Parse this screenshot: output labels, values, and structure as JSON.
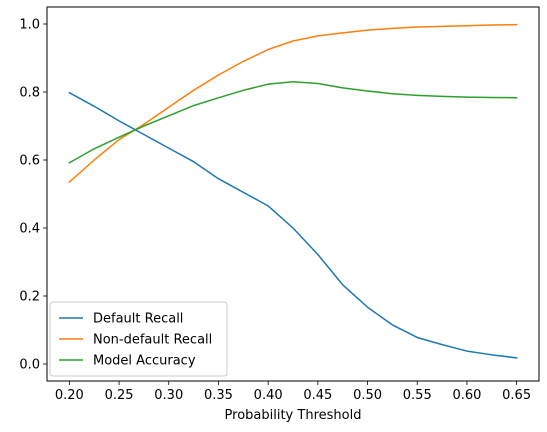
{
  "chart_data": {
    "type": "line",
    "title": "",
    "xlabel": "Probability Threshold",
    "ylabel": "",
    "xlim": [
      0.1775,
      0.6725
    ],
    "ylim": [
      -0.05,
      1.05
    ],
    "xticks": [
      0.2,
      0.25,
      0.3,
      0.35,
      0.4,
      0.45,
      0.5,
      0.55,
      0.6,
      0.65
    ],
    "xtick_labels": [
      "0.20",
      "0.25",
      "0.30",
      "0.35",
      "0.40",
      "0.45",
      "0.50",
      "0.55",
      "0.60",
      "0.65"
    ],
    "yticks": [
      0.0,
      0.2,
      0.4,
      0.6,
      0.8,
      1.0
    ],
    "ytick_labels": [
      "0.0",
      "0.2",
      "0.4",
      "0.6",
      "0.8",
      "1.0"
    ],
    "grid": false,
    "legend_position": "lower-left",
    "x": [
      0.2,
      0.225,
      0.25,
      0.275,
      0.3,
      0.325,
      0.35,
      0.375,
      0.4,
      0.425,
      0.45,
      0.475,
      0.5,
      0.525,
      0.55,
      0.575,
      0.6,
      0.625,
      0.65
    ],
    "series": [
      {
        "name": "Default Recall",
        "color": "#1f77b4",
        "values": [
          0.798,
          0.758,
          0.715,
          0.675,
          0.635,
          0.595,
          0.545,
          0.505,
          0.465,
          0.4,
          0.322,
          0.233,
          0.167,
          0.115,
          0.078,
          0.057,
          0.038,
          0.027,
          0.018
        ]
      },
      {
        "name": "Non-default Recall",
        "color": "#ff7f0e",
        "values": [
          0.535,
          0.6,
          0.66,
          0.705,
          0.755,
          0.805,
          0.85,
          0.89,
          0.925,
          0.95,
          0.965,
          0.974,
          0.982,
          0.987,
          0.991,
          0.993,
          0.995,
          0.997,
          0.998
        ]
      },
      {
        "name": "Model Accuracy",
        "color": "#2ca02c",
        "values": [
          0.592,
          0.633,
          0.667,
          0.7,
          0.73,
          0.76,
          0.783,
          0.805,
          0.823,
          0.83,
          0.825,
          0.812,
          0.803,
          0.795,
          0.79,
          0.787,
          0.785,
          0.784,
          0.783
        ]
      }
    ]
  }
}
